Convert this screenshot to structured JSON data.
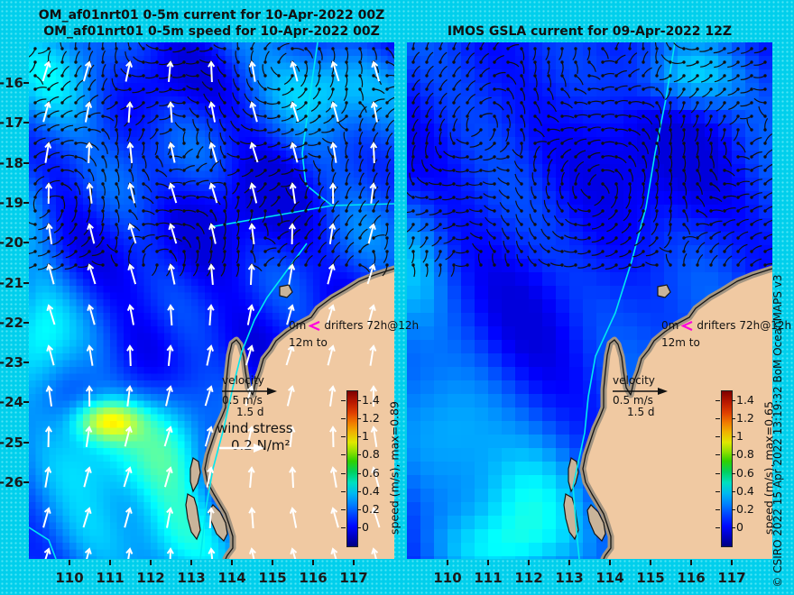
{
  "titles": {
    "left_line1": "OM_af01nrt01 0-5m current for 10-Apr-2022 00Z",
    "left_line2": "OM_af01nrt01 0-5m speed for 10-Apr-2022 00Z",
    "right": "IMOS GSLA current for 09-Apr-2022 12Z"
  },
  "copyright": "© CSIRO 2022  15 Apr 2022 13:19:32 BoM OceanMAPS v3",
  "axes": {
    "x_tick_labels": [
      "110",
      "111",
      "112",
      "113",
      "114",
      "115",
      "116",
      "117"
    ],
    "y_tick_labels": [
      "-16",
      "-17",
      "-18",
      "-19",
      "-20",
      "-21",
      "-22",
      "-23",
      "-24",
      "-25",
      "-26"
    ]
  },
  "panels": [
    {
      "name": "OceanMAPS 0-5m current and speed",
      "colorbar": {
        "tick_labels": [
          "0",
          "0.2",
          "0.4",
          "0.6",
          "0.8",
          "1",
          "1.2",
          "1.4"
        ],
        "label": "speed (m/s), max=0.89"
      },
      "annotations": {
        "drifter_prefix": "0m",
        "drifter_suffix": "drifters 72h@12h",
        "drifter_line2": "12m to",
        "velocity_label": "velocity",
        "velocity_value": "0.5 m/s",
        "velocity_duration": "1.5 d",
        "wind_label": "wind stress",
        "wind_value": "0.2 N/m²"
      }
    },
    {
      "name": "IMOS GSLA current",
      "colorbar": {
        "tick_labels": [
          "0",
          "0.2",
          "0.4",
          "0.6",
          "0.8",
          "1",
          "1.2",
          "1.4"
        ],
        "label": "speed (m/s), max=0.65"
      },
      "annotations": {
        "drifter_prefix": "0m",
        "drifter_suffix": "drifters 72h@12h",
        "drifter_line2": "12m to",
        "velocity_label": "velocity",
        "velocity_value": "0.5 m/s",
        "velocity_duration": "1.5 d"
      }
    }
  ],
  "chart_data": [
    {
      "type": "heatmap",
      "subtype": "ocean-current vector map with speed shading",
      "title": "OM_af01nrt01 0-5m current for 10-Apr-2022 00Z / OM_af01nrt01 0-5m speed for 10-Apr-2022 00Z",
      "x_ticks": [
        110,
        111,
        112,
        113,
        114,
        115,
        116,
        117
      ],
      "y_ticks": [
        -16,
        -17,
        -18,
        -19,
        -20,
        -21,
        -22,
        -23,
        -24,
        -25,
        -26
      ],
      "xlim": [
        109,
        118
      ],
      "ylim": [
        -28,
        -15
      ],
      "grid": false,
      "colorbar": {
        "label": "speed (m/s)",
        "max": 0.89,
        "ticks": [
          0,
          0.2,
          0.4,
          0.6,
          0.8,
          1.0,
          1.2,
          1.4
        ],
        "colormap": "jet"
      },
      "overlays": [
        "black current-trajectory arrows (scale: velocity 0.5 m/s, 1.5 d)",
        "white wind stress arrows (scale: 0.2 N/m², pointing roughly north)",
        "magenta drifter marker (0m drifters 72h@12h, 12m to)",
        "cyan bathymetry/shelf contour along coast",
        "tan land mass: Western Australia coastline with Shark Bay islands"
      ]
    },
    {
      "type": "heatmap",
      "subtype": "ocean-current vector map with speed shading",
      "title": "IMOS GSLA current for 09-Apr-2022 12Z",
      "x_ticks": [
        110,
        111,
        112,
        113,
        114,
        115,
        116,
        117
      ],
      "y_ticks": [
        -16,
        -17,
        -18,
        -19,
        -20,
        -21,
        -22,
        -23,
        -24,
        -25,
        -26
      ],
      "xlim": [
        109,
        118
      ],
      "ylim": [
        -28,
        -15
      ],
      "grid": false,
      "colorbar": {
        "label": "speed (m/s)",
        "max": 0.65,
        "ticks": [
          0,
          0.2,
          0.4,
          0.6,
          0.8,
          1.0,
          1.2,
          1.4
        ],
        "colormap": "jet"
      },
      "overlays": [
        "black current-trajectory arrows (scale: velocity 0.5 m/s, 1.5 d)",
        "magenta drifter marker (0m drifters 72h@12h, 12m to)",
        "cyan bathymetry/shelf contour along coast",
        "tan land mass: Western Australia coastline with Shark Bay islands"
      ]
    }
  ],
  "colors": {
    "background": "#00cfec",
    "land": "#f0c9a2",
    "coastal_band": "#a39582",
    "contour": "#00e8f0",
    "drifter": "#ff00dd",
    "wind_arrow": "#ffffff",
    "current_arrow": "#111111"
  }
}
